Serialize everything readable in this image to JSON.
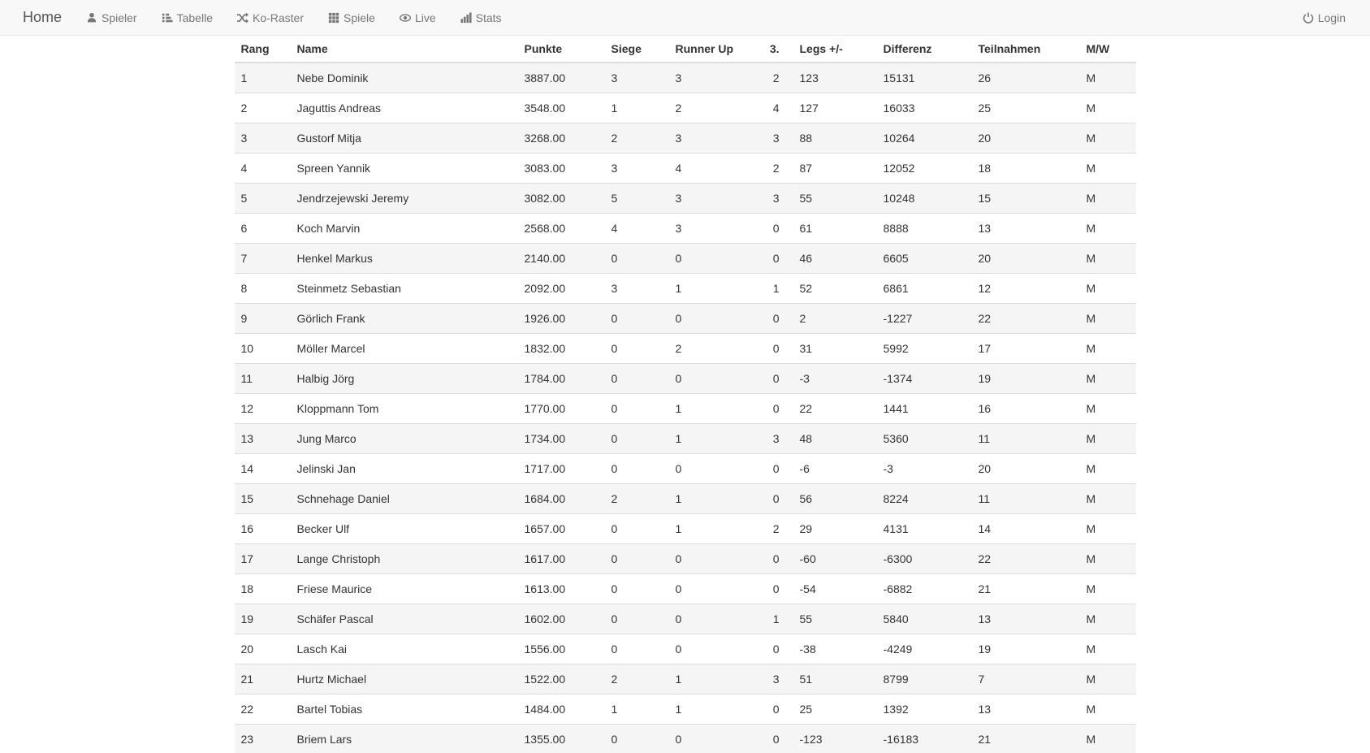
{
  "navbar": {
    "brand": "Home",
    "items": [
      {
        "label": "Spieler",
        "icon": "user-icon"
      },
      {
        "label": "Tabelle",
        "icon": "table-list-icon"
      },
      {
        "label": "Ko-Raster",
        "icon": "shuffle-icon"
      },
      {
        "label": "Spiele",
        "icon": "grid-icon"
      },
      {
        "label": "Live",
        "icon": "eye-icon"
      },
      {
        "label": "Stats",
        "icon": "bar-chart-icon"
      }
    ],
    "login_label": "Login"
  },
  "table": {
    "columns": [
      "Rang",
      "Name",
      "Punkte",
      "Siege",
      "Runner Up",
      "3.",
      "Legs +/-",
      "Differenz",
      "Teilnahmen",
      "M/W"
    ],
    "rows": [
      [
        "1",
        "Nebe Dominik",
        "3887.00",
        "3",
        "3",
        "2",
        "123",
        "15131",
        "26",
        "M"
      ],
      [
        "2",
        "Jaguttis Andreas",
        "3548.00",
        "1",
        "2",
        "4",
        "127",
        "16033",
        "25",
        "M"
      ],
      [
        "3",
        "Gustorf Mitja",
        "3268.00",
        "2",
        "3",
        "3",
        "88",
        "10264",
        "20",
        "M"
      ],
      [
        "4",
        "Spreen Yannik",
        "3083.00",
        "3",
        "4",
        "2",
        "87",
        "12052",
        "18",
        "M"
      ],
      [
        "5",
        "Jendrzejewski Jeremy",
        "3082.00",
        "5",
        "3",
        "3",
        "55",
        "10248",
        "15",
        "M"
      ],
      [
        "6",
        "Koch Marvin",
        "2568.00",
        "4",
        "3",
        "0",
        "61",
        "8888",
        "13",
        "M"
      ],
      [
        "7",
        "Henkel Markus",
        "2140.00",
        "0",
        "0",
        "0",
        "46",
        "6605",
        "20",
        "M"
      ],
      [
        "8",
        "Steinmetz Sebastian",
        "2092.00",
        "3",
        "1",
        "1",
        "52",
        "6861",
        "12",
        "M"
      ],
      [
        "9",
        "Görlich Frank",
        "1926.00",
        "0",
        "0",
        "0",
        "2",
        "-1227",
        "22",
        "M"
      ],
      [
        "10",
        "Möller Marcel",
        "1832.00",
        "0",
        "2",
        "0",
        "31",
        "5992",
        "17",
        "M"
      ],
      [
        "11",
        "Halbig Jörg",
        "1784.00",
        "0",
        "0",
        "0",
        "-3",
        "-1374",
        "19",
        "M"
      ],
      [
        "12",
        "Kloppmann Tom",
        "1770.00",
        "0",
        "1",
        "0",
        "22",
        "1441",
        "16",
        "M"
      ],
      [
        "13",
        "Jung Marco",
        "1734.00",
        "0",
        "1",
        "3",
        "48",
        "5360",
        "11",
        "M"
      ],
      [
        "14",
        "Jelinski Jan",
        "1717.00",
        "0",
        "0",
        "0",
        "-6",
        "-3",
        "20",
        "M"
      ],
      [
        "15",
        "Schnehage Daniel",
        "1684.00",
        "2",
        "1",
        "0",
        "56",
        "8224",
        "11",
        "M"
      ],
      [
        "16",
        "Becker Ulf",
        "1657.00",
        "0",
        "1",
        "2",
        "29",
        "4131",
        "14",
        "M"
      ],
      [
        "17",
        "Lange Christoph",
        "1617.00",
        "0",
        "0",
        "0",
        "-60",
        "-6300",
        "22",
        "M"
      ],
      [
        "18",
        "Friese Maurice",
        "1613.00",
        "0",
        "0",
        "0",
        "-54",
        "-6882",
        "21",
        "M"
      ],
      [
        "19",
        "Schäfer Pascal",
        "1602.00",
        "0",
        "0",
        "1",
        "55",
        "5840",
        "13",
        "M"
      ],
      [
        "20",
        "Lasch Kai",
        "1556.00",
        "0",
        "0",
        "0",
        "-38",
        "-4249",
        "19",
        "M"
      ],
      [
        "21",
        "Hurtz Michael",
        "1522.00",
        "2",
        "1",
        "3",
        "51",
        "8799",
        "7",
        "M"
      ],
      [
        "22",
        "Bartel Tobias",
        "1484.00",
        "1",
        "1",
        "0",
        "25",
        "1392",
        "13",
        "M"
      ],
      [
        "23",
        "Briem Lars",
        "1355.00",
        "0",
        "0",
        "0",
        "-123",
        "-16183",
        "21",
        "M"
      ]
    ]
  },
  "colors": {
    "navbar_bg": "#f8f8f8",
    "navbar_border": "#e7e7e7",
    "nav_link": "#777777",
    "stripe": "#f5f5f5",
    "table_border": "#dddddd",
    "text": "#333333"
  }
}
